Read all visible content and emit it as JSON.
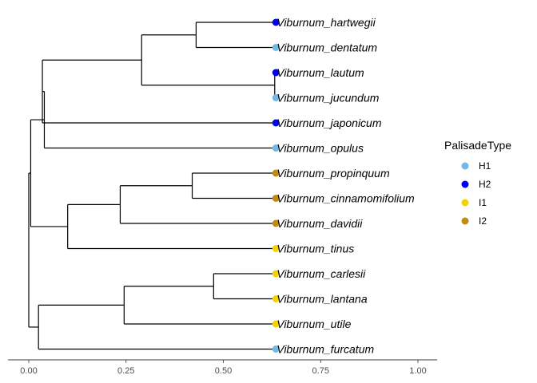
{
  "chart_data": {
    "type": "dendrogram",
    "title": "",
    "xlabel": "",
    "ylabel": "",
    "xlim": [
      -0.05,
      1.05
    ],
    "x_ticks": [
      "0.00",
      "0.25",
      "0.50",
      "0.75",
      "1.00"
    ],
    "x_tick_values": [
      0,
      0.25,
      0.5,
      0.75,
      1.0
    ],
    "tips": [
      {
        "name": "Viburnum_hartwegii",
        "type": "H2"
      },
      {
        "name": "Viburnum_dentatum",
        "type": "H1"
      },
      {
        "name": "Viburnum_lautum",
        "type": "H2"
      },
      {
        "name": "Viburnum_jucundum",
        "type": "H1"
      },
      {
        "name": "Viburnum_japonicum",
        "type": "H2"
      },
      {
        "name": "Viburnum_opulus",
        "type": "H1"
      },
      {
        "name": "Viburnum_propinquum",
        "type": "I2"
      },
      {
        "name": "Viburnum_cinnamomifolium",
        "type": "I2"
      },
      {
        "name": "Viburnum_davidii",
        "type": "I2"
      },
      {
        "name": "Viburnum_tinus",
        "type": "I1"
      },
      {
        "name": "Viburnum_carlesii",
        "type": "I1"
      },
      {
        "name": "Viburnum_lantana",
        "type": "I1"
      },
      {
        "name": "Viburnum_utile",
        "type": "I1"
      },
      {
        "name": "Viburnum_furcatum",
        "type": "H1"
      }
    ],
    "tip_depth": 0.635,
    "tree": {
      "x": 0.0,
      "children": [
        {
          "x": 0.005,
          "children": [
            {
              "x": 0.04,
              "children": [
                {
                  "x": 0.035,
                  "children": [
                    {
                      "x": 0.29,
                      "children": [
                        {
                          "x": 0.43,
                          "children": [
                            {
                              "tip": 0
                            },
                            {
                              "tip": 1
                            }
                          ]
                        },
                        {
                          "x": 0.632,
                          "children": [
                            {
                              "tip": 2
                            },
                            {
                              "tip": 3
                            }
                          ]
                        }
                      ]
                    },
                    {
                      "tip": 4
                    }
                  ]
                },
                {
                  "tip": 5
                }
              ]
            },
            {
              "x": 0.1,
              "children": [
                {
                  "x": 0.235,
                  "children": [
                    {
                      "x": 0.42,
                      "children": [
                        {
                          "tip": 6
                        },
                        {
                          "tip": 7
                        }
                      ]
                    },
                    {
                      "tip": 8
                    }
                  ]
                },
                {
                  "tip": 9
                }
              ]
            }
          ]
        },
        {
          "x": 0.025,
          "children": [
            {
              "x": 0.245,
              "children": [
                {
                  "x": 0.475,
                  "children": [
                    {
                      "tip": 10
                    },
                    {
                      "tip": 11
                    }
                  ]
                },
                {
                  "tip": 12
                }
              ]
            },
            {
              "tip": 13
            }
          ]
        }
      ]
    }
  },
  "legend": {
    "title": "PalisadeType",
    "items": [
      {
        "label": "H1",
        "color": "#74B9E6"
      },
      {
        "label": "H2",
        "color": "#0000F0"
      },
      {
        "label": "I1",
        "color": "#F5D300"
      },
      {
        "label": "I2",
        "color": "#BE8C10"
      }
    ]
  }
}
